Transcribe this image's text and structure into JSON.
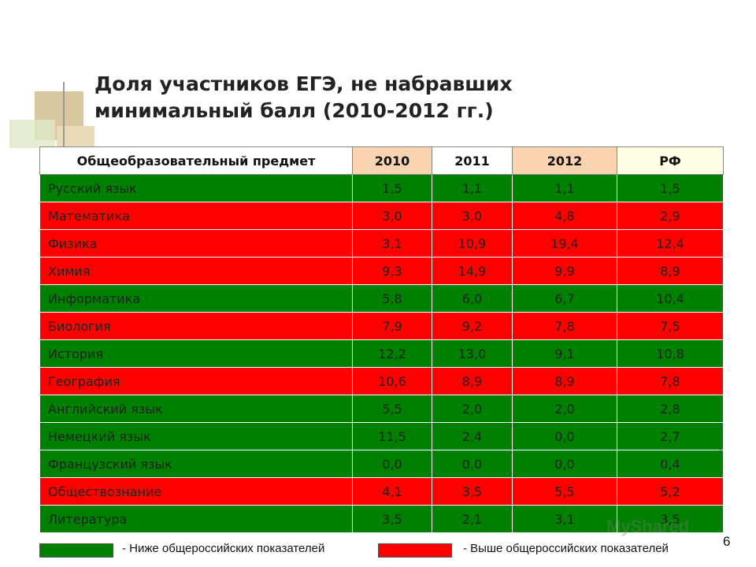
{
  "title_lines": [
    "Доля участников ЕГЭ, не набравших",
    "минимальный балл (2010-2012 гг.)"
  ],
  "table": {
    "header": [
      "Общеобразовательный предмет",
      "2010",
      "2011",
      "2012",
      "РФ"
    ],
    "header_colors": [
      "#ffffff",
      "#fad4b0",
      "#ffffff",
      "#fad4b0",
      "#ffffe6"
    ],
    "rows": [
      {
        "cells": [
          "Русский язык",
          "1,5",
          "1,1",
          "1,1",
          "1,5"
        ],
        "color": "#008000"
      },
      {
        "cells": [
          "Математика",
          "3,0",
          "3,0",
          "4,8",
          "2,9"
        ],
        "color": "#ff0000"
      },
      {
        "cells": [
          "Физика",
          "3,1",
          "10,9",
          "19,4",
          "12,4"
        ],
        "color": "#ff0000"
      },
      {
        "cells": [
          "Химия",
          "9,3",
          "14,9",
          "9,9",
          "8,9"
        ],
        "color": "#ff0000"
      },
      {
        "cells": [
          "Информатика",
          "5,8",
          "6,0",
          "6,7",
          "10,4"
        ],
        "color": "#008000"
      },
      {
        "cells": [
          "Биология",
          "7,9",
          "9,2",
          "7,8",
          "7,5"
        ],
        "color": "#ff0000"
      },
      {
        "cells": [
          "История",
          "12,2",
          "13,0",
          "9,1",
          "10,8"
        ],
        "color": "#008000"
      },
      {
        "cells": [
          "География",
          "10,6",
          "8,9",
          "8,9",
          "7,8"
        ],
        "color": "#ff0000"
      },
      {
        "cells": [
          "Английский язык",
          "5,5",
          "2,0",
          "2,0",
          "2,8"
        ],
        "color": "#008000"
      },
      {
        "cells": [
          "Немецкий язык",
          "11,5",
          "2,4",
          "0,0",
          "2,7"
        ],
        "color": "#008000"
      },
      {
        "cells": [
          "Французский язык",
          "0,0",
          "0,0",
          "0,0",
          "0,4"
        ],
        "color": "#008000"
      },
      {
        "cells": [
          "Обществознание",
          "4,1",
          "3,5",
          "5,5",
          "5,2"
        ],
        "color": "#ff0000"
      },
      {
        "cells": [
          "Литература",
          "3,5",
          "2,1",
          "3,1",
          "3,5"
        ],
        "color": "#008000"
      }
    ]
  },
  "legend": [
    {
      "text": "- Ниже общероссийских показателей",
      "color": "#008000"
    },
    {
      "text": "- Выше общероссийских показателей",
      "color": "#ff0000"
    }
  ],
  "page_number": "6",
  "watermark": "MyShared"
}
